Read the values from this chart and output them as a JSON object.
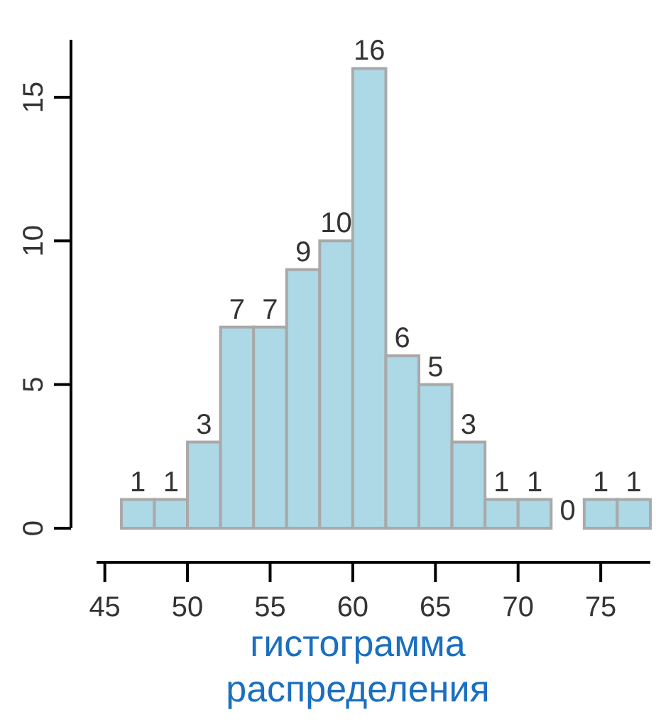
{
  "chart_data": {
    "type": "histogram",
    "xlabel": "гистограмма\nраспределения",
    "bins": [
      46,
      48,
      50,
      52,
      54,
      56,
      58,
      60,
      62,
      64,
      66,
      68,
      70,
      72,
      74,
      76,
      78
    ],
    "values": [
      1,
      1,
      3,
      7,
      7,
      9,
      10,
      16,
      6,
      5,
      3,
      1,
      1,
      0,
      1,
      1
    ],
    "color": "#add8e6",
    "data_labels": true,
    "xlim": [
      44.5,
      78
    ],
    "xticks": [
      45,
      50,
      55,
      60,
      65,
      70,
      75
    ],
    "ylim": [
      0,
      17
    ],
    "yticks": [
      0,
      5,
      10,
      15
    ],
    "grid": false
  }
}
